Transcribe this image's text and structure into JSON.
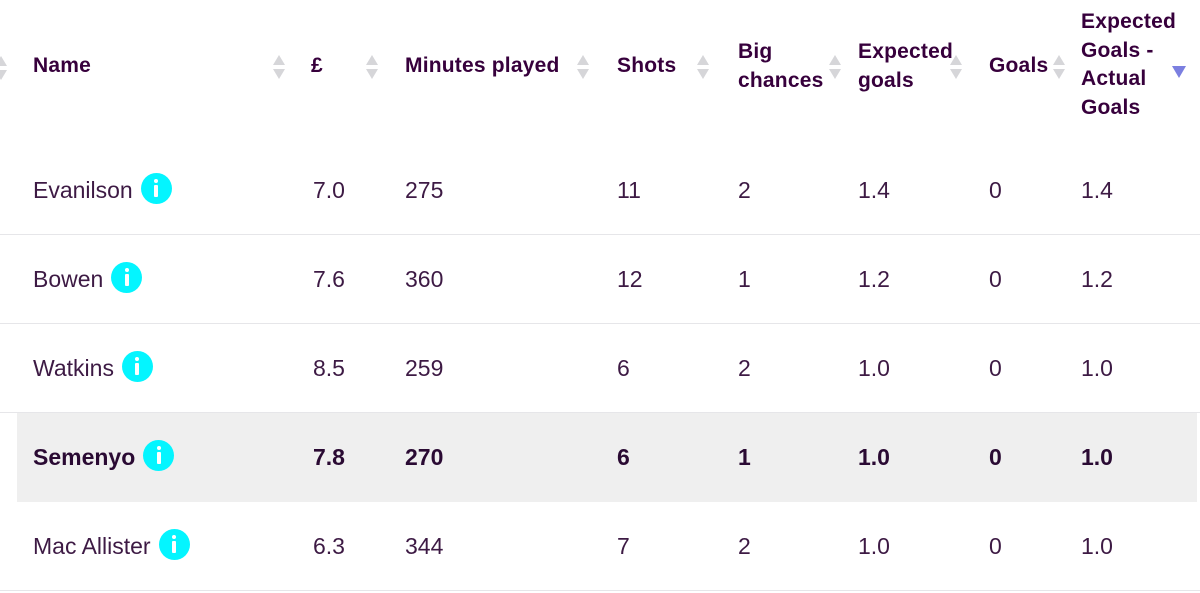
{
  "columns": {
    "name": "Name",
    "price": "£",
    "minutes": "Minutes played",
    "shots": "Shots",
    "big_chances_1": "Big",
    "big_chances_2": "chances",
    "xg_1": "Expected",
    "xg_2": "goals",
    "goals": "Goals",
    "xg_diff_1": "Expected",
    "xg_diff_2": "Goals -",
    "xg_diff_3": "Actual",
    "xg_diff_4": "Goals"
  },
  "sort": {
    "active_column": "Expected Goals - Actual Goals",
    "direction": "descending",
    "active_color": "#7b7fe0"
  },
  "colors": {
    "info_icon": "#04f5ff",
    "highlight_row": "#efefef",
    "text": "#37003c"
  },
  "rows": [
    {
      "name": "Evanilson",
      "price": "7.0",
      "minutes": "275",
      "shots": "11",
      "big_chances": "2",
      "xg": "1.4",
      "goals": "0",
      "xg_diff": "1.4",
      "info_icon": "info-icon"
    },
    {
      "name": "Bowen",
      "price": "7.6",
      "minutes": "360",
      "shots": "12",
      "big_chances": "1",
      "xg": "1.2",
      "goals": "0",
      "xg_diff": "1.2",
      "info_icon": "info-icon"
    },
    {
      "name": "Watkins",
      "price": "8.5",
      "minutes": "259",
      "shots": "6",
      "big_chances": "2",
      "xg": "1.0",
      "goals": "0",
      "xg_diff": "1.0",
      "info_icon": "info-icon"
    },
    {
      "name": "Semenyo",
      "price": "7.8",
      "minutes": "270",
      "shots": "6",
      "big_chances": "1",
      "xg": "1.0",
      "goals": "0",
      "xg_diff": "1.0",
      "info_icon": "info-icon",
      "highlighted": true
    },
    {
      "name": "Mac Allister",
      "price": "6.3",
      "minutes": "344",
      "shots": "7",
      "big_chances": "2",
      "xg": "1.0",
      "goals": "0",
      "xg_diff": "1.0",
      "info_icon": "info-icon"
    }
  ]
}
